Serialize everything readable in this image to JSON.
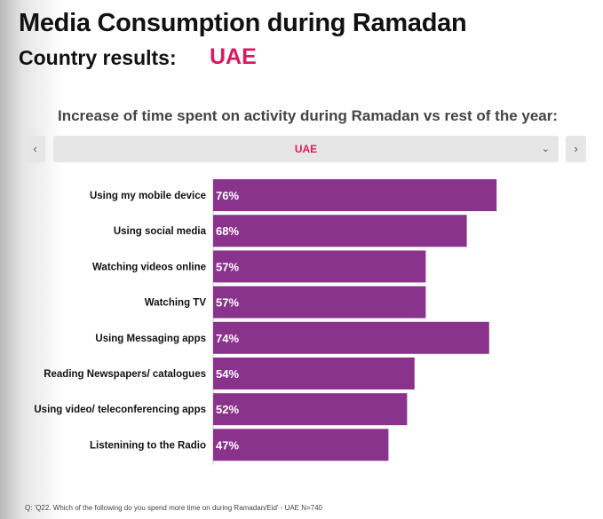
{
  "header": {
    "title": "Media Consumption during Ramadan",
    "subtitle": "Country results:",
    "country": "UAE"
  },
  "chart_header": {
    "question": "Increase of time spent on activity during Ramadan vs rest of the year:"
  },
  "selector": {
    "value": "UAE",
    "prev_icon": "chevron-left-icon",
    "next_icon": "chevron-right-icon",
    "dropdown_icon": "chevron-down-icon"
  },
  "chart_data": {
    "type": "bar",
    "orientation": "horizontal",
    "categories": [
      "Using my mobile device",
      "Using social media",
      "Watching videos online",
      "Watching TV",
      "Using Messaging apps",
      "Reading Newspapers/ catalogues",
      "Using video/ teleconferencing apps",
      "Listenining to the Radio"
    ],
    "values": [
      76,
      68,
      57,
      57,
      74,
      54,
      52,
      47
    ],
    "labels": [
      "76%",
      "68%",
      "57%",
      "57%",
      "74%",
      "54%",
      "52%",
      "47%"
    ],
    "xlim": [
      0,
      100
    ],
    "unit": "%",
    "bar_color": "#8a338c",
    "grid": false
  },
  "footer": {
    "note": "Q: 'Q22. Which of the following do you spend more time on during Ramadan/Eid' - UAE N=740"
  }
}
